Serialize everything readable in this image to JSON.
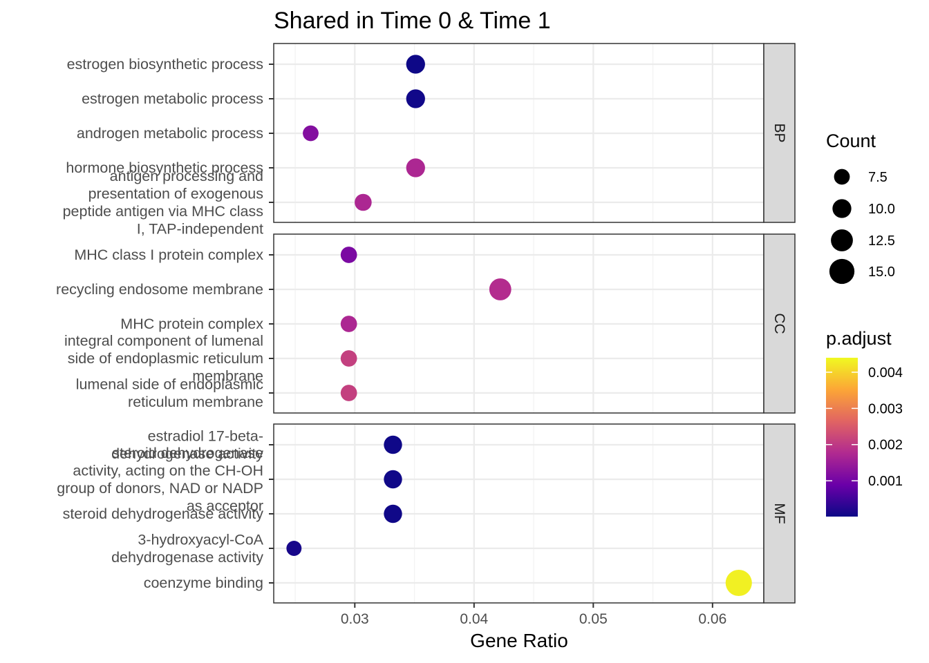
{
  "chart_data": {
    "type": "scatter",
    "title": "Shared in Time 0 & Time 1",
    "xlabel": "Gene Ratio",
    "ylabel": "",
    "xlim": [
      0.0232,
      0.0643
    ],
    "x_ticks": [
      "0.03",
      "0.04",
      "0.05",
      "0.06"
    ],
    "grid": true,
    "facets": [
      {
        "name": "BP",
        "points": [
          {
            "label": [
              "estrogen biosynthetic process"
            ],
            "x": 0.0351,
            "count": 10.0,
            "p_adjust": 2e-05
          },
          {
            "label": [
              "estrogen metabolic process"
            ],
            "x": 0.0351,
            "count": 10.0,
            "p_adjust": 5e-05
          },
          {
            "label": [
              "androgen metabolic process"
            ],
            "x": 0.0263,
            "count": 7.5,
            "p_adjust": 0.0012
          },
          {
            "label": [
              "hormone biosynthetic process"
            ],
            "x": 0.0351,
            "count": 10.0,
            "p_adjust": 0.0017
          },
          {
            "label": [
              "antigen processing and",
              "presentation of exogenous",
              "peptide antigen via MHC class",
              "I, TAP-independent"
            ],
            "x": 0.0307,
            "count": 8.5,
            "p_adjust": 0.0017
          }
        ]
      },
      {
        "name": "CC",
        "points": [
          {
            "label": [
              "MHC class I protein complex"
            ],
            "x": 0.0295,
            "count": 8.0,
            "p_adjust": 0.0011
          },
          {
            "label": [
              "recycling endosome membrane"
            ],
            "x": 0.0422,
            "count": 12.5,
            "p_adjust": 0.0018
          },
          {
            "label": [
              "MHC protein complex"
            ],
            "x": 0.0295,
            "count": 8.0,
            "p_adjust": 0.0017
          },
          {
            "label": [
              "integral component of lumenal",
              "side of endoplasmic reticulum",
              "membrane"
            ],
            "x": 0.0295,
            "count": 8.0,
            "p_adjust": 0.0021
          },
          {
            "label": [
              "lumenal side of endoplasmic",
              "reticulum membrane"
            ],
            "x": 0.0295,
            "count": 8.0,
            "p_adjust": 0.0021
          }
        ]
      },
      {
        "name": "MF",
        "points": [
          {
            "label": [
              "estradiol 17-beta-",
              "dehydrogenase activity"
            ],
            "x": 0.0332,
            "count": 9.5,
            "p_adjust": 3e-05
          },
          {
            "label": [
              "steroid dehydrogenase",
              "activity, acting on the CH-OH",
              "group of donors, NAD or NADP",
              "as acceptor"
            ],
            "x": 0.0332,
            "count": 9.5,
            "p_adjust": 4e-05
          },
          {
            "label": [
              "steroid dehydrogenase activity"
            ],
            "x": 0.0332,
            "count": 9.5,
            "p_adjust": 4e-05
          },
          {
            "label": [
              "3-hydroxyacyl-CoA",
              "dehydrogenase activity"
            ],
            "x": 0.0249,
            "count": 7.0,
            "p_adjust": 0.0001
          },
          {
            "label": [
              "coenzyme binding"
            ],
            "x": 0.0622,
            "count": 16.0,
            "p_adjust": 0.0043
          }
        ]
      }
    ],
    "legend_size": {
      "title": "Count",
      "values": [
        7.5,
        10.0,
        12.5,
        15.0
      ],
      "labels": [
        "7.5",
        "10.0",
        "12.5",
        "15.0"
      ]
    },
    "legend_color": {
      "title": "p.adjust",
      "range": [
        1e-05,
        0.0044
      ],
      "ticks": [
        0.001,
        0.002,
        0.003,
        0.004
      ],
      "tick_labels": [
        "0.001",
        "0.002",
        "0.003",
        "0.004"
      ],
      "colormap": "plasma",
      "colors": [
        "#0d0887",
        "#6a00a8",
        "#b12a90",
        "#e16462",
        "#fca636",
        "#f0f921"
      ]
    },
    "legend_position": "right"
  }
}
